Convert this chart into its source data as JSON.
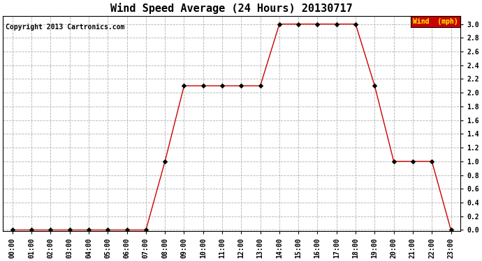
{
  "title": "Wind Speed Average (24 Hours) 20130717",
  "copyright": "Copyright 2013 Cartronics.com",
  "legend_label": "Wind  (mph)",
  "legend_bg": "#cc0000",
  "legend_fg": "#ffff00",
  "line_color": "#cc0000",
  "marker_color": "#000000",
  "background_color": "#ffffff",
  "grid_color": "#b0b0b0",
  "ylim": [
    0.0,
    3.0
  ],
  "x_labels": [
    "00:00",
    "01:00",
    "02:00",
    "03:00",
    "04:00",
    "05:00",
    "06:00",
    "07:00",
    "08:00",
    "09:00",
    "10:00",
    "11:00",
    "12:00",
    "13:00",
    "14:00",
    "15:00",
    "16:00",
    "17:00",
    "18:00",
    "19:00",
    "20:00",
    "21:00",
    "22:00",
    "23:00"
  ],
  "y_values": [
    0.0,
    0.0,
    0.0,
    0.0,
    0.0,
    0.0,
    0.0,
    0.0,
    1.0,
    2.1,
    2.1,
    2.1,
    2.1,
    2.1,
    3.0,
    3.0,
    3.0,
    3.0,
    3.0,
    2.1,
    1.0,
    1.0,
    1.0,
    0.0
  ],
  "title_fontsize": 11,
  "tick_fontsize": 7,
  "copyright_fontsize": 7,
  "legend_fontsize": 7
}
